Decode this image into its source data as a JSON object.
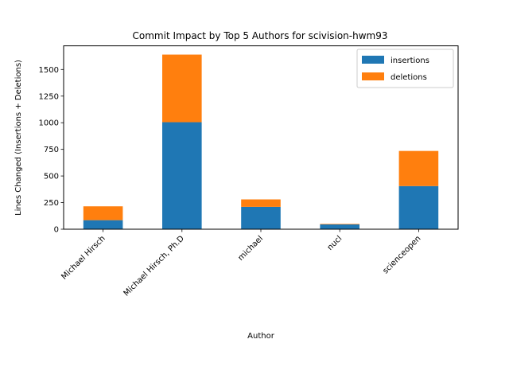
{
  "chart_data": {
    "type": "bar",
    "stacked": true,
    "title": "Commit Impact by Top 5 Authors for scivision-hwm93",
    "xlabel": "Author",
    "ylabel": "Lines Changed (Insertions + Deletions)",
    "categories": [
      "Michael Hirsch",
      "Michael Hirsch, Ph.D",
      "michael",
      "nucl",
      "scienceopen"
    ],
    "series": [
      {
        "name": "insertions",
        "color": "#1f77b4",
        "values": [
          85,
          1005,
          210,
          45,
          405
        ]
      },
      {
        "name": "deletions",
        "color": "#ff7f0e",
        "values": [
          130,
          635,
          70,
          5,
          330
        ]
      }
    ],
    "ylim": [
      0,
      1722
    ],
    "yticks": [
      0,
      250,
      500,
      750,
      1000,
      1250,
      1500
    ],
    "grid": false,
    "legend_position": "top-right"
  }
}
